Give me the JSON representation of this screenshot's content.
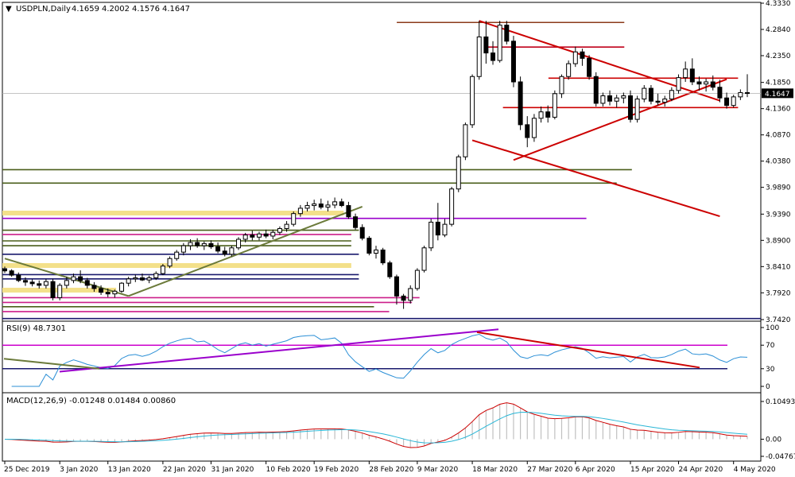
{
  "chart_data": [
    {
      "type": "candlestick",
      "title": "USDPLN,Daily",
      "ohlc_readout": [
        "4.1659",
        "4.2002",
        "4.1576",
        "4.1647"
      ],
      "current_price_label": "4.1647",
      "ylim": [
        3.742,
        4.333
      ],
      "price_ticks": [
        "4.3330",
        "4.2840",
        "4.2350",
        "4.1850",
        "4.1360",
        "4.0870",
        "4.0380",
        "3.9890",
        "3.9390",
        "3.8900",
        "3.8410",
        "3.7920",
        "3.7420"
      ],
      "x_tick_labels": [
        "25 Dec 2019",
        "3 Jan 2020",
        "13 Jan 2020",
        "22 Jan 2020",
        "31 Jan 2020",
        "10 Feb 2020",
        "19 Feb 2020",
        "28 Feb 2020",
        "9 Mar 2020",
        "18 Mar 2020",
        "27 Mar 2020",
        "6 Apr 2020",
        "15 Apr 2020",
        "24 Apr 2020",
        "4 May 2020"
      ],
      "candles": [
        {
          "o": 3.837,
          "h": 3.841,
          "l": 3.829,
          "c": 3.833
        },
        {
          "o": 3.833,
          "h": 3.836,
          "l": 3.822,
          "c": 3.825
        },
        {
          "o": 3.825,
          "h": 3.83,
          "l": 3.812,
          "c": 3.815
        },
        {
          "o": 3.815,
          "h": 3.821,
          "l": 3.805,
          "c": 3.812
        },
        {
          "o": 3.812,
          "h": 3.817,
          "l": 3.804,
          "c": 3.809
        },
        {
          "o": 3.809,
          "h": 3.815,
          "l": 3.8,
          "c": 3.806
        },
        {
          "o": 3.806,
          "h": 3.818,
          "l": 3.8,
          "c": 3.813
        },
        {
          "o": 3.813,
          "h": 3.818,
          "l": 3.778,
          "c": 3.783
        },
        {
          "o": 3.783,
          "h": 3.81,
          "l": 3.778,
          "c": 3.806
        },
        {
          "o": 3.806,
          "h": 3.822,
          "l": 3.8,
          "c": 3.815
        },
        {
          "o": 3.815,
          "h": 3.828,
          "l": 3.81,
          "c": 3.822
        },
        {
          "o": 3.822,
          "h": 3.834,
          "l": 3.81,
          "c": 3.815
        },
        {
          "o": 3.815,
          "h": 3.82,
          "l": 3.8,
          "c": 3.806
        },
        {
          "o": 3.806,
          "h": 3.812,
          "l": 3.794,
          "c": 3.8
        },
        {
          "o": 3.8,
          "h": 3.806,
          "l": 3.788,
          "c": 3.793
        },
        {
          "o": 3.793,
          "h": 3.8,
          "l": 3.784,
          "c": 3.79
        },
        {
          "o": 3.79,
          "h": 3.798,
          "l": 3.783,
          "c": 3.795
        },
        {
          "o": 3.795,
          "h": 3.812,
          "l": 3.792,
          "c": 3.81
        },
        {
          "o": 3.81,
          "h": 3.822,
          "l": 3.804,
          "c": 3.818
        },
        {
          "o": 3.818,
          "h": 3.826,
          "l": 3.812,
          "c": 3.82
        },
        {
          "o": 3.82,
          "h": 3.828,
          "l": 3.814,
          "c": 3.816
        },
        {
          "o": 3.816,
          "h": 3.824,
          "l": 3.81,
          "c": 3.82
        },
        {
          "o": 3.82,
          "h": 3.832,
          "l": 3.816,
          "c": 3.828
        },
        {
          "o": 3.828,
          "h": 3.846,
          "l": 3.825,
          "c": 3.842
        },
        {
          "o": 3.842,
          "h": 3.86,
          "l": 3.838,
          "c": 3.856
        },
        {
          "o": 3.856,
          "h": 3.872,
          "l": 3.852,
          "c": 3.868
        },
        {
          "o": 3.868,
          "h": 3.885,
          "l": 3.862,
          "c": 3.88
        },
        {
          "o": 3.88,
          "h": 3.892,
          "l": 3.872,
          "c": 3.886
        },
        {
          "o": 3.886,
          "h": 3.894,
          "l": 3.876,
          "c": 3.88
        },
        {
          "o": 3.88,
          "h": 3.888,
          "l": 3.872,
          "c": 3.884
        },
        {
          "o": 3.884,
          "h": 3.89,
          "l": 3.874,
          "c": 3.878
        },
        {
          "o": 3.878,
          "h": 3.886,
          "l": 3.866,
          "c": 3.87
        },
        {
          "o": 3.87,
          "h": 3.878,
          "l": 3.86,
          "c": 3.864
        },
        {
          "o": 3.864,
          "h": 3.88,
          "l": 3.86,
          "c": 3.876
        },
        {
          "o": 3.876,
          "h": 3.896,
          "l": 3.872,
          "c": 3.892
        },
        {
          "o": 3.892,
          "h": 3.904,
          "l": 3.886,
          "c": 3.9
        },
        {
          "o": 3.9,
          "h": 3.908,
          "l": 3.89,
          "c": 3.896
        },
        {
          "o": 3.896,
          "h": 3.906,
          "l": 3.89,
          "c": 3.902
        },
        {
          "o": 3.902,
          "h": 3.91,
          "l": 3.894,
          "c": 3.898
        },
        {
          "o": 3.898,
          "h": 3.91,
          "l": 3.892,
          "c": 3.905
        },
        {
          "o": 3.905,
          "h": 3.916,
          "l": 3.9,
          "c": 3.912
        },
        {
          "o": 3.912,
          "h": 3.926,
          "l": 3.906,
          "c": 3.92
        },
        {
          "o": 3.92,
          "h": 3.944,
          "l": 3.916,
          "c": 3.94
        },
        {
          "o": 3.94,
          "h": 3.956,
          "l": 3.934,
          "c": 3.95
        },
        {
          "o": 3.95,
          "h": 3.962,
          "l": 3.944,
          "c": 3.955
        },
        {
          "o": 3.955,
          "h": 3.966,
          "l": 3.946,
          "c": 3.958
        },
        {
          "o": 3.958,
          "h": 3.968,
          "l": 3.948,
          "c": 3.952
        },
        {
          "o": 3.952,
          "h": 3.964,
          "l": 3.944,
          "c": 3.956
        },
        {
          "o": 3.956,
          "h": 3.97,
          "l": 3.95,
          "c": 3.962
        },
        {
          "o": 3.962,
          "h": 3.968,
          "l": 3.952,
          "c": 3.955
        },
        {
          "o": 3.955,
          "h": 3.962,
          "l": 3.93,
          "c": 3.934
        },
        {
          "o": 3.934,
          "h": 3.94,
          "l": 3.91,
          "c": 3.914
        },
        {
          "o": 3.914,
          "h": 3.92,
          "l": 3.89,
          "c": 3.894
        },
        {
          "o": 3.894,
          "h": 3.898,
          "l": 3.862,
          "c": 3.866
        },
        {
          "o": 3.866,
          "h": 3.88,
          "l": 3.856,
          "c": 3.872
        },
        {
          "o": 3.872,
          "h": 3.876,
          "l": 3.844,
          "c": 3.848
        },
        {
          "o": 3.848,
          "h": 3.852,
          "l": 3.818,
          "c": 3.822
        },
        {
          "o": 3.822,
          "h": 3.826,
          "l": 3.77,
          "c": 3.786
        },
        {
          "o": 3.786,
          "h": 3.79,
          "l": 3.762,
          "c": 3.778
        },
        {
          "o": 3.778,
          "h": 3.806,
          "l": 3.772,
          "c": 3.8
        },
        {
          "o": 3.8,
          "h": 3.838,
          "l": 3.796,
          "c": 3.834
        },
        {
          "o": 3.834,
          "h": 3.88,
          "l": 3.83,
          "c": 3.876
        },
        {
          "o": 3.876,
          "h": 3.93,
          "l": 3.87,
          "c": 3.924
        },
        {
          "o": 3.924,
          "h": 3.96,
          "l": 3.89,
          "c": 3.9
        },
        {
          "o": 3.9,
          "h": 3.93,
          "l": 3.896,
          "c": 3.92
        },
        {
          "o": 3.92,
          "h": 3.99,
          "l": 3.916,
          "c": 3.986
        },
        {
          "o": 3.986,
          "h": 4.05,
          "l": 3.98,
          "c": 4.046
        },
        {
          "o": 4.046,
          "h": 4.11,
          "l": 4.04,
          "c": 4.106
        },
        {
          "o": 4.106,
          "h": 4.2,
          "l": 4.1,
          "c": 4.196
        },
        {
          "o": 4.196,
          "h": 4.3,
          "l": 4.19,
          "c": 4.27
        },
        {
          "o": 4.27,
          "h": 4.3,
          "l": 4.22,
          "c": 4.24
        },
        {
          "o": 4.24,
          "h": 4.262,
          "l": 4.218,
          "c": 4.226
        },
        {
          "o": 4.226,
          "h": 4.3,
          "l": 4.222,
          "c": 4.292
        },
        {
          "o": 4.292,
          "h": 4.3,
          "l": 4.256,
          "c": 4.262
        },
        {
          "o": 4.262,
          "h": 4.272,
          "l": 4.176,
          "c": 4.186
        },
        {
          "o": 4.186,
          "h": 4.196,
          "l": 4.096,
          "c": 4.106
        },
        {
          "o": 4.106,
          "h": 4.122,
          "l": 4.064,
          "c": 4.082
        },
        {
          "o": 4.082,
          "h": 4.126,
          "l": 4.074,
          "c": 4.118
        },
        {
          "o": 4.118,
          "h": 4.14,
          "l": 4.11,
          "c": 4.13
        },
        {
          "o": 4.13,
          "h": 4.142,
          "l": 4.11,
          "c": 4.12
        },
        {
          "o": 4.12,
          "h": 4.17,
          "l": 4.116,
          "c": 4.164
        },
        {
          "o": 4.164,
          "h": 4.2,
          "l": 4.156,
          "c": 4.196
        },
        {
          "o": 4.196,
          "h": 4.226,
          "l": 4.19,
          "c": 4.22
        },
        {
          "o": 4.22,
          "h": 4.252,
          "l": 4.214,
          "c": 4.242
        },
        {
          "o": 4.242,
          "h": 4.248,
          "l": 4.216,
          "c": 4.23
        },
        {
          "o": 4.23,
          "h": 4.236,
          "l": 4.19,
          "c": 4.196
        },
        {
          "o": 4.196,
          "h": 4.204,
          "l": 4.14,
          "c": 4.146
        },
        {
          "o": 4.146,
          "h": 4.166,
          "l": 4.14,
          "c": 4.16
        },
        {
          "o": 4.16,
          "h": 4.17,
          "l": 4.142,
          "c": 4.15
        },
        {
          "o": 4.15,
          "h": 4.162,
          "l": 4.138,
          "c": 4.156
        },
        {
          "o": 4.156,
          "h": 4.166,
          "l": 4.146,
          "c": 4.16
        },
        {
          "o": 4.16,
          "h": 4.17,
          "l": 4.11,
          "c": 4.116
        },
        {
          "o": 4.116,
          "h": 4.16,
          "l": 4.11,
          "c": 4.154
        },
        {
          "o": 4.154,
          "h": 4.18,
          "l": 4.148,
          "c": 4.174
        },
        {
          "o": 4.174,
          "h": 4.18,
          "l": 4.144,
          "c": 4.15
        },
        {
          "o": 4.15,
          "h": 4.164,
          "l": 4.142,
          "c": 4.148
        },
        {
          "o": 4.148,
          "h": 4.16,
          "l": 4.14,
          "c": 4.154
        },
        {
          "o": 4.154,
          "h": 4.176,
          "l": 4.15,
          "c": 4.17
        },
        {
          "o": 4.17,
          "h": 4.2,
          "l": 4.164,
          "c": 4.194
        },
        {
          "o": 4.194,
          "h": 4.224,
          "l": 4.186,
          "c": 4.21
        },
        {
          "o": 4.21,
          "h": 4.23,
          "l": 4.18,
          "c": 4.186
        },
        {
          "o": 4.186,
          "h": 4.196,
          "l": 4.17,
          "c": 4.182
        },
        {
          "o": 4.182,
          "h": 4.192,
          "l": 4.168,
          "c": 4.186
        },
        {
          "o": 4.186,
          "h": 4.198,
          "l": 4.17,
          "c": 4.176
        },
        {
          "o": 4.176,
          "h": 4.19,
          "l": 4.148,
          "c": 4.156
        },
        {
          "o": 4.156,
          "h": 4.166,
          "l": 4.136,
          "c": 4.142
        },
        {
          "o": 4.142,
          "h": 4.162,
          "l": 4.138,
          "c": 4.158
        },
        {
          "o": 4.158,
          "h": 4.172,
          "l": 4.152,
          "c": 4.166
        },
        {
          "o": 4.1659,
          "h": 4.2002,
          "l": 4.1576,
          "c": 4.1647
        }
      ],
      "horizontal_levels": [
        {
          "price": 4.297,
          "color": "#8b3a1a",
          "from": 0.52,
          "to": 0.82
        },
        {
          "price": 4.251,
          "color": "#c0001a",
          "from": 0.64,
          "to": 0.82
        },
        {
          "price": 4.193,
          "color": "#cc0000",
          "from": 0.72,
          "to": 0.97
        },
        {
          "price": 4.138,
          "color": "#cc0000",
          "from": 0.66,
          "to": 0.97
        },
        {
          "price": 4.022,
          "color": "#4a5e1a",
          "from": 0.0,
          "to": 0.83
        },
        {
          "price": 3.997,
          "color": "#4a5e1a",
          "from": 0.0,
          "to": 0.81
        },
        {
          "price": 3.941,
          "color": "#f3e08a",
          "from": 0.0,
          "to": 0.45,
          "band": true
        },
        {
          "price": 3.931,
          "color": "#9a00cc",
          "from": 0.0,
          "to": 0.77
        },
        {
          "price": 3.909,
          "color": "#4a5e1a",
          "from": 0.0,
          "to": 0.47
        },
        {
          "price": 3.901,
          "color": "#cc1f8a",
          "from": 0.0,
          "to": 0.46
        },
        {
          "price": 3.889,
          "color": "#4a5e1a",
          "from": 0.0,
          "to": 0.46
        },
        {
          "price": 3.88,
          "color": "#4a5e1a",
          "from": 0.0,
          "to": 0.46
        },
        {
          "price": 3.864,
          "color": "#1a1a6e",
          "from": 0.0,
          "to": 0.47
        },
        {
          "price": 3.843,
          "color": "#f3e08a",
          "from": 0.0,
          "to": 0.46,
          "band": true
        },
        {
          "price": 3.826,
          "color": "#1a1a6e",
          "from": 0.0,
          "to": 0.47
        },
        {
          "price": 3.818,
          "color": "#1a1a6e",
          "from": 0.0,
          "to": 0.47
        },
        {
          "price": 3.797,
          "color": "#f3e08a",
          "from": 0.0,
          "to": 0.15,
          "band": true
        },
        {
          "price": 3.783,
          "color": "#cc1f8a",
          "from": 0.0,
          "to": 0.55
        },
        {
          "price": 3.774,
          "color": "#cc1f8a",
          "from": 0.0,
          "to": 0.54
        },
        {
          "price": 3.766,
          "color": "#4a5e1a",
          "from": 0.0,
          "to": 0.49
        },
        {
          "price": 3.757,
          "color": "#cc1f8a",
          "from": 0.0,
          "to": 0.51
        },
        {
          "price": 3.744,
          "color": "#1a1a6e",
          "from": 0.0,
          "to": 1.0
        }
      ],
      "trendlines": [
        {
          "color": "#cc0000",
          "from": [
            69,
            4.3
          ],
          "to": [
            104,
            4.151
          ]
        },
        {
          "color": "#cc0000",
          "from": [
            68,
            4.077
          ],
          "to": [
            104,
            3.935
          ]
        },
        {
          "color": "#cc0000",
          "from": [
            74,
            4.04
          ],
          "to": [
            105,
            4.191
          ]
        },
        {
          "color": "#6b7a3a",
          "from": [
            0,
            3.856
          ],
          "to": [
            18,
            3.786
          ]
        },
        {
          "color": "#6b7a3a",
          "from": [
            18,
            3.786
          ],
          "to": [
            52,
            3.953
          ]
        }
      ]
    },
    {
      "type": "line",
      "title": "RSI(9) 48.7301",
      "ylim": [
        0,
        100
      ],
      "ticks": [
        "100",
        "70",
        "30",
        "0"
      ],
      "levels": [
        70,
        30
      ],
      "series": [
        {
          "name": "RSI(9)",
          "color": "#2b8fd6"
        }
      ]
    },
    {
      "type": "bar",
      "title": "MACD(12,26,9) -0.01248 0.01484 0.00860",
      "ylim": [
        -0.04767,
        0.10493
      ],
      "ticks": [
        "0.10493",
        "0.00",
        "-0.04767"
      ],
      "series": [
        {
          "name": "MACD",
          "color": "#c0c0c0"
        },
        {
          "name": "Signal",
          "color": "#cc0000"
        },
        {
          "name": "Main",
          "color": "#29b6d6"
        }
      ]
    }
  ]
}
